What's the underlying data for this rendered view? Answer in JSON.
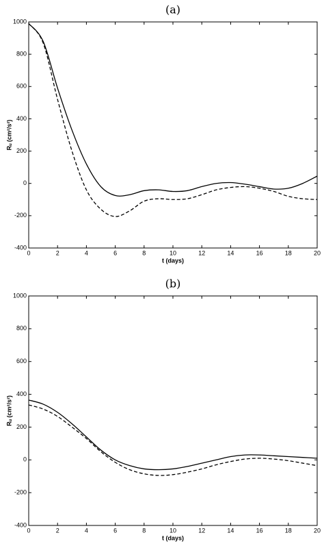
{
  "chart_data": [
    {
      "type": "line",
      "title": "(a)",
      "xlabel": "t (days)",
      "ylabel": "Rᵤ (cm²/s²)",
      "x": [
        0,
        1,
        2,
        3,
        4,
        5,
        6,
        7,
        8,
        9,
        10,
        11,
        12,
        13,
        14,
        15,
        16,
        17,
        18,
        19,
        20
      ],
      "series": [
        {
          "color": "#000000",
          "linestyle": "solid",
          "values": [
            990,
            880,
            590,
            330,
            120,
            -20,
            -75,
            -70,
            -45,
            -40,
            -50,
            -45,
            -20,
            0,
            5,
            -5,
            -20,
            -35,
            -30,
            0,
            45
          ]
        },
        {
          "color": "#000000",
          "linestyle": "dashed",
          "values": [
            990,
            870,
            520,
            200,
            -40,
            -160,
            -205,
            -170,
            -110,
            -95,
            -100,
            -95,
            -70,
            -40,
            -25,
            -20,
            -30,
            -50,
            -80,
            -95,
            -100
          ]
        }
      ],
      "xlim": [
        0,
        20
      ],
      "xticks": [
        0,
        2,
        4,
        6,
        8,
        10,
        12,
        14,
        16,
        18,
        20
      ],
      "ylim": [
        -400,
        1000
      ],
      "yticks": [
        -400,
        -200,
        0,
        200,
        400,
        600,
        800,
        1000
      ]
    },
    {
      "type": "line",
      "title": "(b)",
      "xlabel": "t (days)",
      "ylabel": "Rᵤ (cm²/s²)",
      "x": [
        0,
        1,
        2,
        3,
        4,
        5,
        6,
        7,
        8,
        9,
        10,
        11,
        12,
        13,
        14,
        15,
        16,
        17,
        18,
        19,
        20
      ],
      "series": [
        {
          "color": "#000000",
          "linestyle": "solid",
          "values": [
            365,
            340,
            290,
            220,
            140,
            60,
            0,
            -35,
            -55,
            -60,
            -55,
            -40,
            -20,
            0,
            20,
            30,
            30,
            25,
            20,
            15,
            10
          ]
        },
        {
          "color": "#000000",
          "linestyle": "dashed",
          "values": [
            335,
            310,
            265,
            200,
            130,
            50,
            -15,
            -60,
            -85,
            -95,
            -90,
            -75,
            -55,
            -30,
            -10,
            5,
            10,
            5,
            -5,
            -20,
            -35
          ]
        }
      ],
      "xlim": [
        0,
        20
      ],
      "xticks": [
        0,
        2,
        4,
        6,
        8,
        10,
        12,
        14,
        16,
        18,
        20
      ],
      "ylim": [
        -400,
        1000
      ],
      "yticks": [
        -400,
        -200,
        0,
        200,
        400,
        600,
        800,
        1000
      ]
    }
  ]
}
